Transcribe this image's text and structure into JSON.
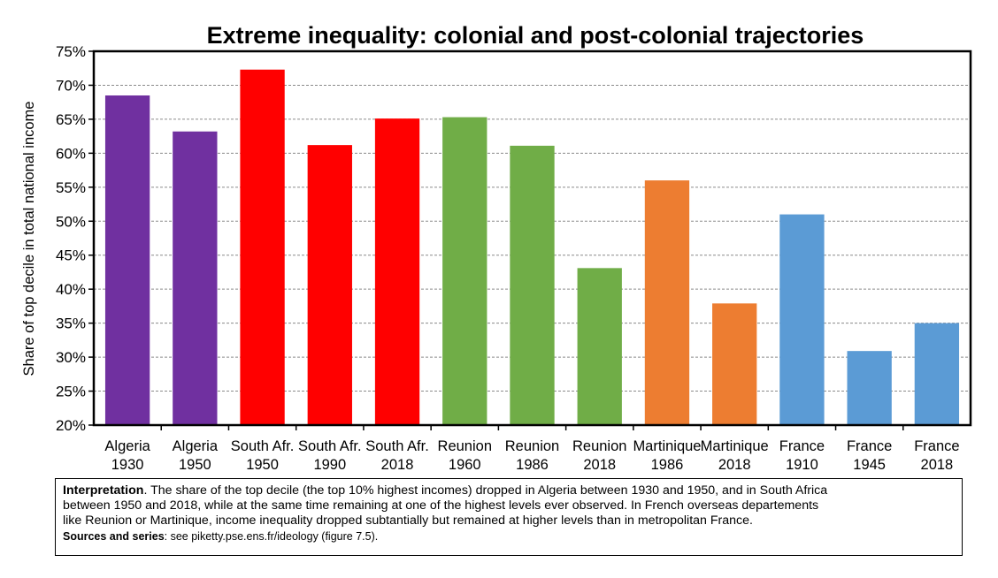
{
  "chart_data": {
    "type": "bar",
    "title": "Extreme inequality: colonial and post-colonial trajectories",
    "ylabel": "Share of top decile in total national income",
    "xlabel": "",
    "ylim": [
      0.2,
      0.75
    ],
    "yticks": [
      "20%",
      "25%",
      "30%",
      "35%",
      "40%",
      "45%",
      "50%",
      "55%",
      "60%",
      "65%",
      "70%",
      "75%"
    ],
    "grid": true,
    "categories": [
      [
        "Algeria",
        "1930"
      ],
      [
        "Algeria",
        "1950"
      ],
      [
        "South Afr.",
        "1950"
      ],
      [
        "South Afr.",
        "1990"
      ],
      [
        "South Afr.",
        "2018"
      ],
      [
        "Reunion",
        "1960"
      ],
      [
        "Reunion",
        "1986"
      ],
      [
        "Reunion",
        "2018"
      ],
      [
        "Martinique",
        "1986"
      ],
      [
        "Martinique",
        "2018"
      ],
      [
        "France",
        "1910"
      ],
      [
        "France",
        "1945"
      ],
      [
        "France",
        "2018"
      ]
    ],
    "values": [
      0.685,
      0.632,
      0.723,
      0.612,
      0.651,
      0.653,
      0.611,
      0.431,
      0.56,
      0.379,
      0.51,
      0.309,
      0.35
    ],
    "colors": [
      "#7030a0",
      "#7030a0",
      "#ff0000",
      "#ff0000",
      "#ff0000",
      "#70ad47",
      "#70ad47",
      "#70ad47",
      "#ed7d31",
      "#ed7d31",
      "#5b9bd5",
      "#5b9bd5",
      "#5b9bd5"
    ]
  },
  "note": {
    "interpretation_label": "Interpretation",
    "line1": ". The share of the top decile (the top 10% highest incomes) dropped in Algeria between 1930 and 1950, and in South Africa",
    "line2": "between 1950 and 2018, while at the same time remaining at one of the highest levels ever observed. In French overseas departements",
    "line3": "like Reunion or Martinique, income inequality dropped subtantially but remained at higher levels than in metropolitan France.",
    "sources_label": "Sources and series",
    "sources_text": ": see piketty.pse.ens.fr/ideology (figure 7.5)."
  }
}
